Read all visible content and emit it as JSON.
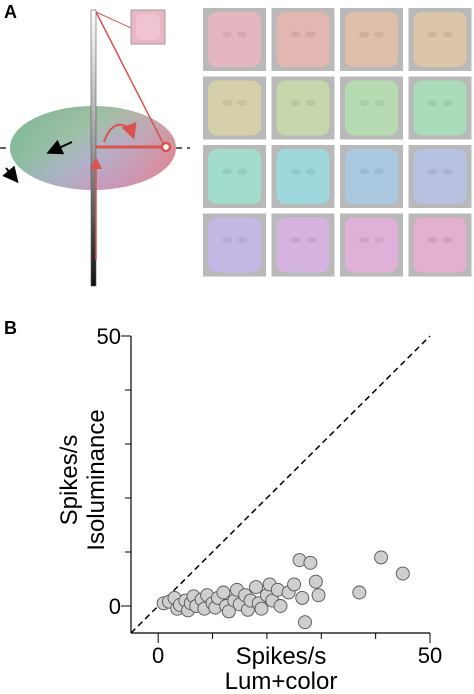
{
  "panels": {
    "a": "A",
    "b": "B"
  },
  "colors": {
    "arrow_red": "#d9534f",
    "point_fill": "#cfcfcf",
    "point_stroke": "#555555",
    "stimulus_tints": [
      "#e9b7c1",
      "#e7b6b0",
      "#e3bfa8",
      "#e1c6a6",
      "#d8d3a9",
      "#c8dcaa",
      "#b6dfb1",
      "#a9dfbb",
      "#9fe0cf",
      "#9cdbe0",
      "#a9cbe6",
      "#b8c2e6",
      "#c7b7e8",
      "#d7b3e3",
      "#e3b0db",
      "#e8afcf"
    ]
  },
  "chart_data": {
    "type": "scatter",
    "xlabel_lines": [
      "Spikes/s",
      "Lum+color"
    ],
    "ylabel_lines": [
      "Spikes/s",
      "Isoluminance"
    ],
    "xlim": [
      -5,
      50
    ],
    "ylim": [
      -5,
      50
    ],
    "x_ticks": [
      0,
      50
    ],
    "y_ticks": [
      0,
      50
    ],
    "diagonal": "unity line (dashed)",
    "points": [
      {
        "x": 1,
        "y": 0.5
      },
      {
        "x": 2,
        "y": 0.8
      },
      {
        "x": 3,
        "y": 1.5
      },
      {
        "x": 3.5,
        "y": -0.5
      },
      {
        "x": 4,
        "y": 0.2
      },
      {
        "x": 5,
        "y": 1
      },
      {
        "x": 5.5,
        "y": -0.8
      },
      {
        "x": 6,
        "y": 0.5
      },
      {
        "x": 6.5,
        "y": 1.8
      },
      {
        "x": 7,
        "y": 0
      },
      {
        "x": 8,
        "y": 1.2
      },
      {
        "x": 8.5,
        "y": -0.5
      },
      {
        "x": 9,
        "y": 2
      },
      {
        "x": 10,
        "y": 0.5
      },
      {
        "x": 10.5,
        "y": -0.3
      },
      {
        "x": 11,
        "y": 1.5
      },
      {
        "x": 12,
        "y": 2.5
      },
      {
        "x": 12.5,
        "y": 0
      },
      {
        "x": 13,
        "y": -1
      },
      {
        "x": 14,
        "y": 1
      },
      {
        "x": 14.5,
        "y": 3
      },
      {
        "x": 15,
        "y": 0.3
      },
      {
        "x": 16,
        "y": 2
      },
      {
        "x": 16.5,
        "y": -0.7
      },
      {
        "x": 17,
        "y": 1
      },
      {
        "x": 18,
        "y": 3.5
      },
      {
        "x": 18.5,
        "y": 0.5
      },
      {
        "x": 19,
        "y": -0.5
      },
      {
        "x": 20,
        "y": 2
      },
      {
        "x": 20.5,
        "y": 4
      },
      {
        "x": 21,
        "y": 1
      },
      {
        "x": 22,
        "y": 3
      },
      {
        "x": 22.5,
        "y": 0
      },
      {
        "x": 24,
        "y": 2.5
      },
      {
        "x": 25,
        "y": 4
      },
      {
        "x": 26,
        "y": 8.5
      },
      {
        "x": 26.5,
        "y": 1.5
      },
      {
        "x": 27,
        "y": -3
      },
      {
        "x": 28,
        "y": 8
      },
      {
        "x": 29,
        "y": 4.5
      },
      {
        "x": 29.5,
        "y": 2
      },
      {
        "x": 37,
        "y": 2.5
      },
      {
        "x": 41,
        "y": 9
      },
      {
        "x": 45,
        "y": 6
      }
    ]
  }
}
